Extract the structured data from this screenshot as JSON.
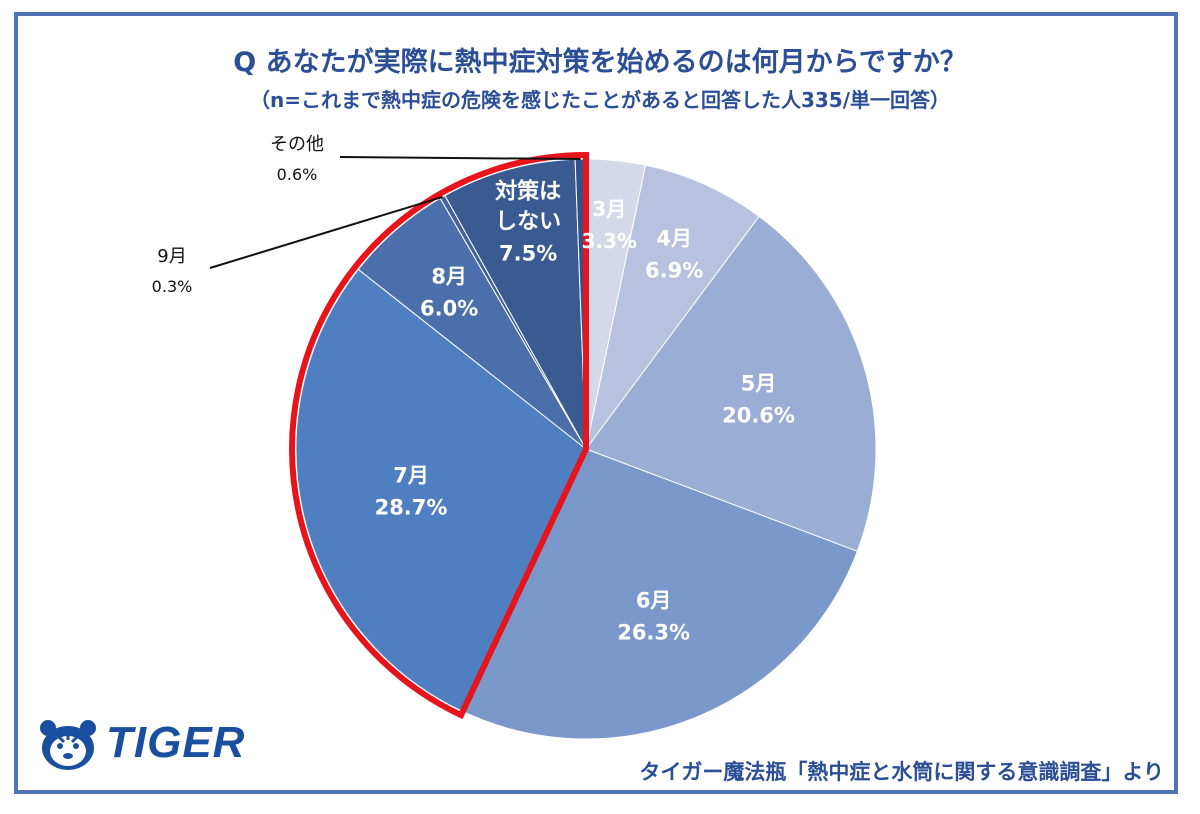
{
  "header": {
    "title": "Q あなたが実際に熱中症対策を始めるのは何月からですか？",
    "subtitle": "（n=これまで熱中症の危険を感じたことがあると回答した人335/単一回答）"
  },
  "footer": {
    "logo_text": "TIGER",
    "source": "タイガー魔法瓶「熱中症と水筒に関する意識調査」より"
  },
  "chart_data": {
    "type": "pie",
    "title": "",
    "slices": [
      {
        "name": "3月",
        "value": 3.3,
        "label": "3.3%",
        "color": "#d4d9ea"
      },
      {
        "name": "4月",
        "value": 6.9,
        "label": "6.9%",
        "color": "#b6c2de"
      },
      {
        "name": "5月",
        "value": 20.6,
        "label": "20.6%",
        "color": "#9aaed5"
      },
      {
        "name": "6月",
        "value": 26.3,
        "label": "26.3%",
        "color": "#7b98cb"
      },
      {
        "name": "7月",
        "value": 28.7,
        "label": "28.7%",
        "color": "#507fc1"
      },
      {
        "name": "8月",
        "value": 6.0,
        "label": "6.0%",
        "color": "#4a6fab"
      },
      {
        "name": "9月",
        "value": 0.3,
        "label": "0.3%",
        "color": "#42639d"
      },
      {
        "name": "対策はしない",
        "value": 7.5,
        "label": "7.5%",
        "color": "#3a5a92"
      },
      {
        "name": "その他",
        "value": 0.6,
        "label": "0.6%",
        "color": "#34528a"
      }
    ],
    "start_angle_deg": 0,
    "direction": "clockwise",
    "highlight_color": "#e8141b",
    "highlighted_slices": [
      "7月",
      "8月",
      "9月",
      "対策はしない",
      "その他"
    ]
  }
}
